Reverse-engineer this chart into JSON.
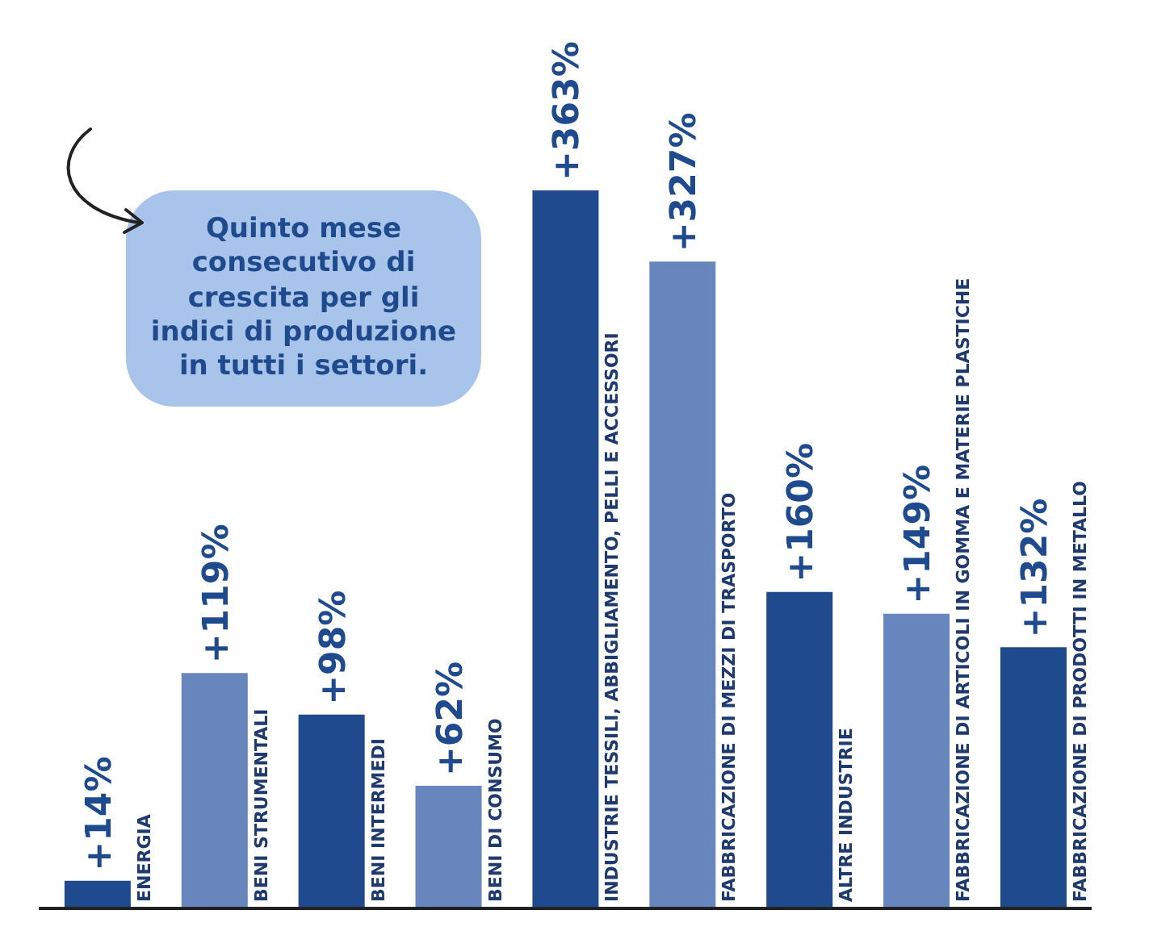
{
  "chart_data": {
    "type": "bar",
    "categories": [
      "ENERGIA",
      "BENI STRUMENTALI",
      "BENI INTERMEDI",
      "BENI DI CONSUMO",
      "INDUSTRIE TESSILI, ABBIGLIAMENTO, PELLI E ACCESSORI",
      "FABBRICAZIONE DI MEZZI DI TRASPORTO",
      "ALTRE INDUSTRIE",
      "FABBRICAZIONE DI ARTICOLI IN GOMMA E MATERIE PLASTICHE",
      "FABBRICAZIONE DI PRODOTTI IN METALLO"
    ],
    "values": [
      14,
      119,
      98,
      62,
      363,
      327,
      160,
      149,
      132
    ],
    "value_labels": [
      "+14%",
      "+119%",
      "+98%",
      "+62%",
      "+363%",
      "+327%",
      "+160%",
      "+149%",
      "+132%"
    ],
    "colors": [
      "#1f4b8e",
      "#6686bd",
      "#1f4b8e",
      "#6686bd",
      "#1f4b8e",
      "#6686bd",
      "#1f4b8e",
      "#6686bd",
      "#1f4b8e"
    ],
    "annotations": [
      "Quinto mese consecutivo di crescita per gli indici di produzione in tutti i settori."
    ]
  }
}
